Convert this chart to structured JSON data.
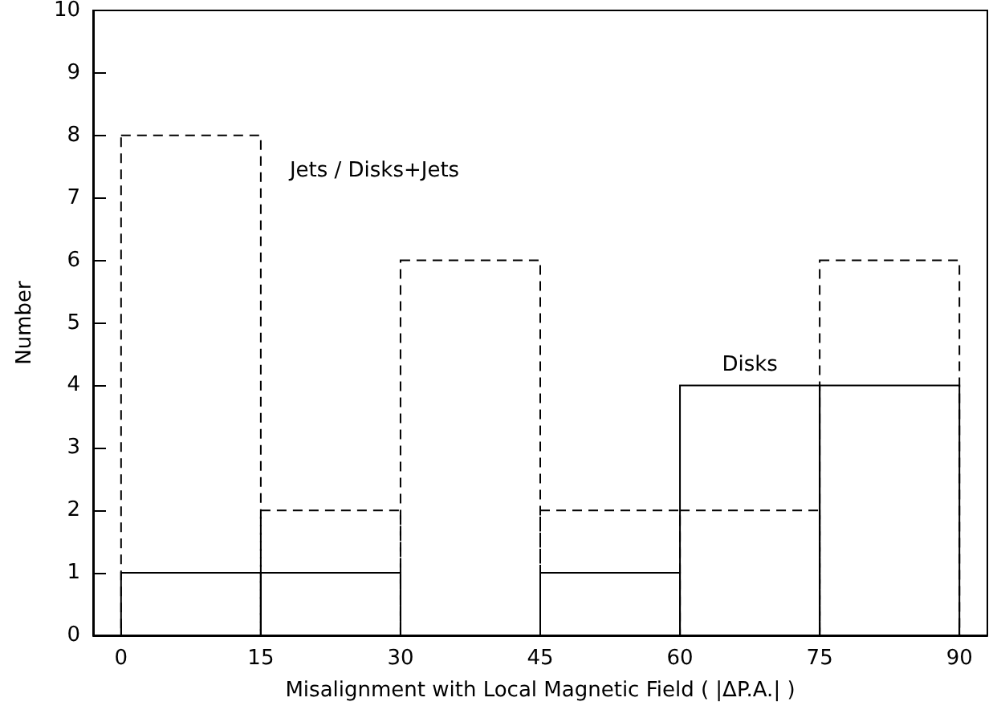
{
  "chart_data": {
    "type": "histogram",
    "xlabel": "Misalignment with Local Magnetic Field ( |ΔP.A.| )",
    "ylabel": "Number",
    "bins": [
      0,
      15,
      30,
      45,
      60,
      75,
      90
    ],
    "series": [
      {
        "name": "Jets / Disks+Jets",
        "color": "#000000",
        "line_style": "dashed",
        "values": [
          8,
          2,
          6,
          2,
          2,
          6
        ]
      },
      {
        "name": "Disks",
        "color": "#000000",
        "line_style": "solid",
        "values": [
          1,
          1,
          0,
          1,
          4,
          4
        ]
      }
    ],
    "xlim": [
      -3,
      93
    ],
    "xticks": [
      0,
      15,
      30,
      45,
      60,
      75,
      90
    ],
    "ylim": [
      0,
      10
    ],
    "yticks": [
      0,
      1,
      2,
      3,
      4,
      5,
      6,
      7,
      8,
      9,
      10
    ],
    "grid": false,
    "legend": false
  }
}
